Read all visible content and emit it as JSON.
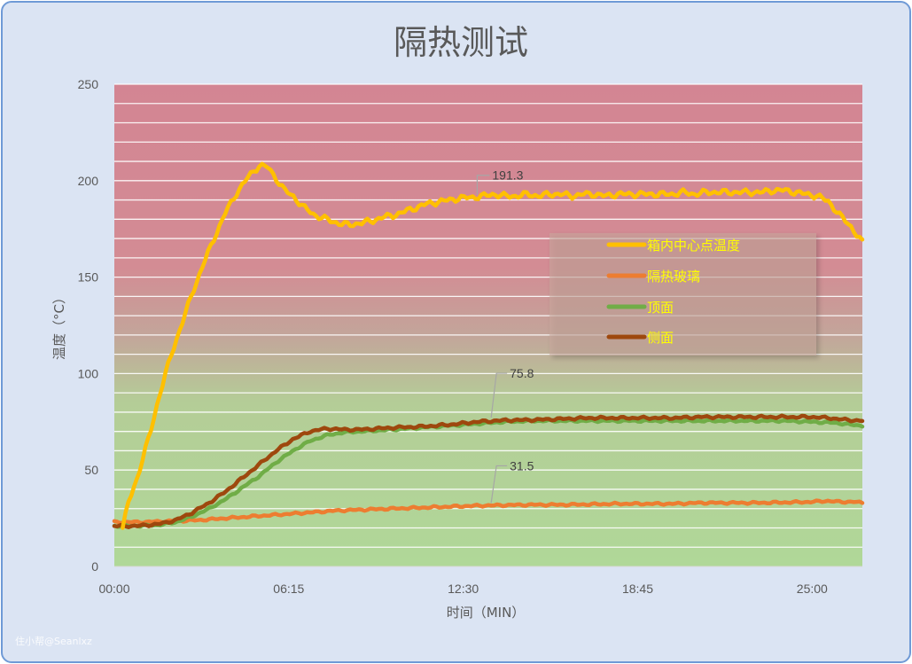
{
  "chart_data": {
    "type": "line",
    "title": "隔热测试",
    "xlabel": "时间（MIN）",
    "ylabel": "温度（°C）",
    "ylim": [
      0,
      250
    ],
    "xlim": [
      0,
      26.8
    ],
    "y_ticks": [
      "0",
      "50",
      "100",
      "150",
      "200",
      "250"
    ],
    "x_ticks": [
      {
        "label": "00:00",
        "value": 0
      },
      {
        "label": "06:15",
        "value": 6.25
      },
      {
        "label": "12:30",
        "value": 12.5
      },
      {
        "label": "18:45",
        "value": 18.75
      },
      {
        "label": "25:00",
        "value": 25
      }
    ],
    "grid": true,
    "legend_position": "right",
    "series": [
      {
        "name": "箱内中心点温度",
        "color": "#ffc000",
        "x": [
          0.3,
          0.5,
          0.8,
          1.0,
          1.3,
          1.6,
          2.0,
          2.4,
          2.8,
          3.2,
          3.6,
          4.0,
          4.4,
          4.8,
          5.2,
          5.5,
          5.8,
          6.1,
          6.4,
          6.8,
          7.2,
          7.6,
          8.0,
          8.4,
          8.8,
          9.2,
          9.6,
          10.0,
          10.4,
          10.8,
          11.2,
          11.6,
          12.0,
          12.4,
          12.8,
          13.2,
          13.6,
          14.0,
          14.4,
          14.8,
          15.2,
          15.6,
          16.0,
          16.4,
          16.8,
          17.2,
          17.6,
          18.0,
          18.4,
          18.8,
          19.2,
          19.6,
          20.0,
          20.4,
          20.8,
          21.2,
          21.6,
          22.0,
          22.4,
          22.8,
          23.2,
          23.6,
          24.0,
          24.4,
          24.8,
          25.2,
          25.6,
          26.0,
          26.4,
          26.8
        ],
        "values": [
          20,
          33,
          45,
          55,
          70,
          88,
          108,
          125,
          142,
          157,
          171,
          184,
          194,
          202,
          208,
          207,
          201,
          195,
          192,
          186,
          182,
          180,
          178,
          177,
          178,
          179,
          181,
          182,
          184,
          186,
          188,
          189,
          190,
          191,
          191.3,
          192,
          193,
          192,
          192,
          193,
          192,
          193,
          193,
          192,
          193,
          193,
          192,
          193,
          193,
          193,
          193,
          193,
          193,
          194,
          193,
          194,
          194,
          194,
          194,
          194,
          194,
          195,
          195,
          194,
          193,
          192,
          189,
          182,
          176,
          168
        ]
      },
      {
        "name": "隔热玻璃",
        "color": "#ed7d31",
        "x": [
          0,
          1.0,
          2.0,
          3.0,
          4.0,
          5.0,
          6.0,
          7.0,
          8.0,
          9.0,
          10.0,
          11.0,
          12.0,
          13.0,
          14.0,
          15.0,
          16.0,
          17.0,
          18.0,
          19.0,
          20.0,
          21.0,
          22.0,
          23.0,
          24.0,
          25.0,
          25.5,
          26.0,
          26.5,
          26.8
        ],
        "values": [
          23,
          23,
          23.5,
          24,
          25,
          26,
          27,
          28,
          29,
          29.5,
          30,
          30.5,
          31,
          31.5,
          31.8,
          32,
          32,
          32.2,
          32.5,
          32.5,
          32.5,
          33,
          33,
          33,
          33.2,
          33.5,
          34,
          33.5,
          33.5,
          33
        ]
      },
      {
        "name": "顶面",
        "color": "#70ad47",
        "x": [
          0,
          0.8,
          1.6,
          2.2,
          2.8,
          3.4,
          4.0,
          4.6,
          5.2,
          5.8,
          6.4,
          7.0,
          7.6,
          8.2,
          8.8,
          9.4,
          10.0,
          11.0,
          12.0,
          13.0,
          14.0,
          15.0,
          16.0,
          17.0,
          18.0,
          19.0,
          20.0,
          21.0,
          22.0,
          23.0,
          24.0,
          25.0,
          25.8,
          26.4,
          26.8
        ],
        "values": [
          21,
          21,
          21.5,
          23,
          26,
          30,
          35,
          41,
          47,
          54,
          60,
          65,
          68,
          69.5,
          70,
          70.5,
          71,
          72,
          73,
          74,
          75,
          75.5,
          75.5,
          75.5,
          75.5,
          75.5,
          75.5,
          75.5,
          75.5,
          75.5,
          75.5,
          75,
          74.5,
          73.5,
          73
        ]
      },
      {
        "name": "侧面",
        "color": "#9e480e",
        "x": [
          0,
          0.8,
          1.6,
          2.2,
          2.8,
          3.4,
          4.0,
          4.6,
          5.2,
          5.8,
          6.4,
          7.0,
          7.6,
          8.2,
          8.8,
          9.4,
          10.0,
          11.0,
          12.0,
          13.0,
          14.0,
          15.0,
          16.0,
          17.0,
          18.0,
          19.0,
          20.0,
          21.0,
          22.0,
          23.0,
          24.0,
          25.0,
          25.6,
          26.2,
          26.8
        ],
        "values": [
          21,
          21,
          22,
          24,
          28,
          33,
          39,
          46,
          53,
          60,
          66,
          70,
          71.5,
          71,
          71,
          71.5,
          72,
          72.5,
          73.5,
          75,
          75.8,
          76,
          76.5,
          77,
          77,
          77,
          77,
          77.5,
          77.5,
          77.5,
          77.5,
          77.5,
          77,
          76,
          75.5
        ]
      }
    ],
    "annotations": [
      {
        "text": "191.3",
        "x": 13.0,
        "y": 191.3
      },
      {
        "text": "75.8",
        "x": 13.5,
        "y": 75.8
      },
      {
        "text": "31.5",
        "x": 13.5,
        "y": 31.5
      }
    ],
    "background_bands": {
      "hot_color": "#d48a96",
      "cool_color": "#b2d798"
    }
  },
  "watermark": "住小帮@Seanlxz"
}
